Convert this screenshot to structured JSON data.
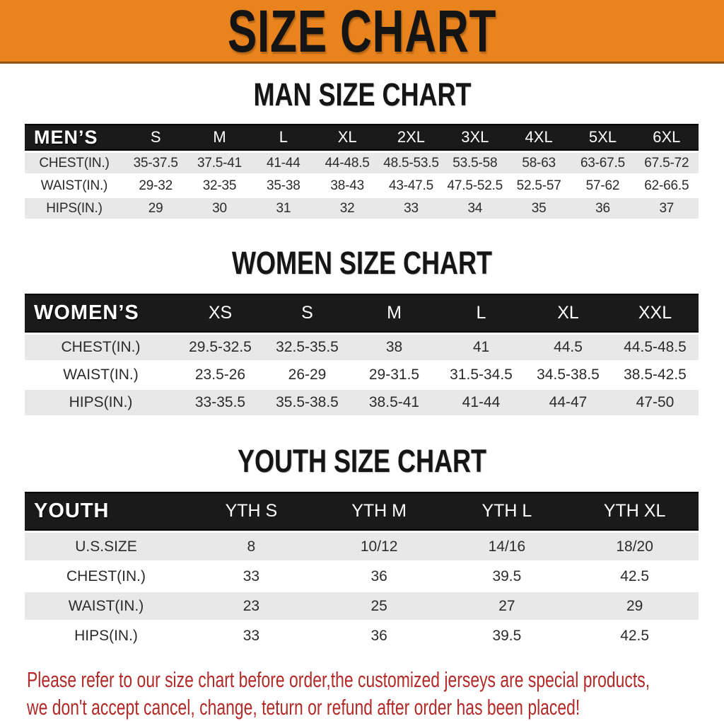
{
  "banner": {
    "title": "SIZE CHART"
  },
  "colors": {
    "banner_orange": "#E8831E",
    "header_black": "#1A1A1A",
    "row_gray": "#E8E8E8",
    "footer_red": "#B22A28"
  },
  "mens": {
    "heading": "MAN SIZE CHART",
    "header_label": "MEN’S",
    "columns": [
      "S",
      "M",
      "L",
      "XL",
      "2XL",
      "3XL",
      "4XL",
      "5XL",
      "6XL"
    ],
    "rows": [
      {
        "label": "CHEST(IN.)",
        "values": [
          "35-37.5",
          "37.5-41",
          "41-44",
          "44-48.5",
          "48.5-53.5",
          "53.5-58",
          "58-63",
          "63-67.5",
          "67.5-72"
        ]
      },
      {
        "label": "WAIST(IN.)",
        "values": [
          "29-32",
          "32-35",
          "35-38",
          "38-43",
          "43-47.5",
          "47.5-52.5",
          "52.5-57",
          "57-62",
          "62-66.5"
        ]
      },
      {
        "label": "HIPS(IN.)",
        "values": [
          "29",
          "30",
          "31",
          "32",
          "33",
          "34",
          "35",
          "36",
          "37"
        ]
      }
    ]
  },
  "womens": {
    "heading": "WOMEN SIZE CHART",
    "header_label": "WOMEN’S",
    "columns": [
      "XS",
      "S",
      "M",
      "L",
      "XL",
      "XXL"
    ],
    "rows": [
      {
        "label": "CHEST(IN.)",
        "values": [
          "29.5-32.5",
          "32.5-35.5",
          "38",
          "41",
          "44.5",
          "44.5-48.5"
        ]
      },
      {
        "label": "WAIST(IN.)",
        "values": [
          "23.5-26",
          "26-29",
          "29-31.5",
          "31.5-34.5",
          "34.5-38.5",
          "38.5-42.5"
        ]
      },
      {
        "label": "HIPS(IN.)",
        "values": [
          "33-35.5",
          "35.5-38.5",
          "38.5-41",
          "41-44",
          "44-47",
          "47-50"
        ]
      }
    ]
  },
  "youth": {
    "heading": "YOUTH SIZE CHART",
    "header_label": "YOUTH",
    "columns": [
      "YTH S",
      "YTH M",
      "YTH L",
      "YTH XL"
    ],
    "rows": [
      {
        "label": "U.S.SIZE",
        "values": [
          "8",
          "10/12",
          "14/16",
          "18/20"
        ]
      },
      {
        "label": "CHEST(IN.)",
        "values": [
          "33",
          "36",
          "39.5",
          "42.5"
        ]
      },
      {
        "label": "WAIST(IN.)",
        "values": [
          "23",
          "25",
          "27",
          "29"
        ]
      },
      {
        "label": "HIPS(IN.)",
        "values": [
          "33",
          "36",
          "39.5",
          "42.5"
        ]
      }
    ]
  },
  "footer": {
    "line1": "Please refer to our size chart before order,the customized jerseys are special products,",
    "line2": "we don't accept cancel, change, teturn or refund after order has been placed!"
  }
}
